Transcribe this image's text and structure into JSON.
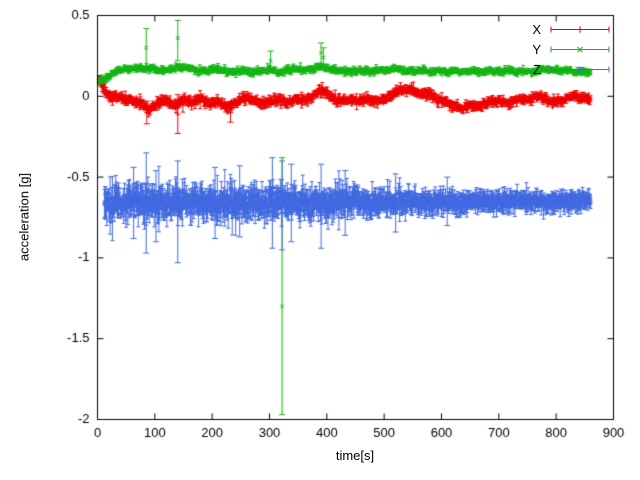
{
  "chart_data": {
    "type": "scatter",
    "title": "",
    "xlabel": "time[s]",
    "ylabel": "acceleration [g]",
    "xlim": [
      0,
      900
    ],
    "ylim": [
      -2,
      0.5
    ],
    "x_ticks": [
      0,
      100,
      200,
      300,
      400,
      500,
      600,
      700,
      800,
      900
    ],
    "x_tick_labels": [
      "0",
      "100",
      "200",
      "300",
      "400",
      "500",
      "600",
      "700",
      "800",
      "900"
    ],
    "y_ticks": [
      0.5,
      0,
      -0.5,
      -1,
      -1.5,
      -2
    ],
    "y_tick_labels": [
      "0.5",
      "0",
      "-0.5",
      "-1",
      "-1.5",
      "-2"
    ],
    "grid": false,
    "axis_color": "#000000",
    "legend": {
      "position": "top-right",
      "entries": [
        "X",
        "Y",
        "Z"
      ]
    },
    "series": [
      {
        "name": "X",
        "color": "#ee0000",
        "marker": "plus",
        "style": "points-with-errorbars",
        "seed": 11,
        "x_start": 2,
        "x_end": 860,
        "step": 0.5,
        "err_every": 3,
        "trend": [
          [
            2,
            0.1
          ],
          [
            8,
            0.08
          ],
          [
            14,
            0.02
          ],
          [
            25,
            0.0
          ],
          [
            40,
            -0.01
          ],
          [
            60,
            -0.02
          ],
          [
            75,
            -0.04
          ],
          [
            90,
            -0.08
          ],
          [
            100,
            -0.06
          ],
          [
            110,
            -0.02
          ],
          [
            120,
            -0.03
          ],
          [
            135,
            -0.06
          ],
          [
            150,
            -0.02
          ],
          [
            165,
            -0.04
          ],
          [
            180,
            -0.01
          ],
          [
            195,
            -0.05
          ],
          [
            210,
            -0.03
          ],
          [
            225,
            -0.07
          ],
          [
            240,
            -0.04
          ],
          [
            255,
            -0.01
          ],
          [
            270,
            -0.02
          ],
          [
            285,
            -0.05
          ],
          [
            300,
            -0.03
          ],
          [
            315,
            -0.02
          ],
          [
            330,
            -0.04
          ],
          [
            345,
            -0.02
          ],
          [
            360,
            -0.02
          ],
          [
            375,
            0.0
          ],
          [
            388,
            0.04
          ],
          [
            398,
            0.03
          ],
          [
            408,
            -0.01
          ],
          [
            420,
            -0.03
          ],
          [
            435,
            -0.02
          ],
          [
            450,
            -0.03
          ],
          [
            465,
            -0.02
          ],
          [
            480,
            -0.03
          ],
          [
            495,
            -0.02
          ],
          [
            505,
            -0.01
          ],
          [
            515,
            0.01
          ],
          [
            525,
            0.03
          ],
          [
            535,
            0.04
          ],
          [
            545,
            0.04
          ],
          [
            555,
            0.03
          ],
          [
            565,
            0.02
          ],
          [
            575,
            0.01
          ],
          [
            590,
            -0.01
          ],
          [
            605,
            -0.03
          ],
          [
            620,
            -0.06
          ],
          [
            635,
            -0.07
          ],
          [
            650,
            -0.06
          ],
          [
            665,
            -0.06
          ],
          [
            680,
            -0.04
          ],
          [
            695,
            -0.03
          ],
          [
            710,
            -0.04
          ],
          [
            725,
            -0.03
          ],
          [
            740,
            -0.02
          ],
          [
            755,
            -0.02
          ],
          [
            768,
            0.01
          ],
          [
            780,
            -0.01
          ],
          [
            792,
            -0.04
          ],
          [
            805,
            -0.03
          ],
          [
            818,
            -0.01
          ],
          [
            832,
            0.0
          ],
          [
            845,
            -0.01
          ],
          [
            860,
            -0.01
          ]
        ],
        "noise_sd": [
          [
            0,
            0.012
          ],
          [
            860,
            0.012
          ]
        ],
        "err_len": [
          [
            0,
            0.02
          ],
          [
            860,
            0.018
          ]
        ],
        "outliers": [
          {
            "x": 86,
            "y": -0.1,
            "lo": -0.17,
            "hi": -0.03
          },
          {
            "x": 140,
            "y": -0.11,
            "lo": -0.23,
            "hi": 0.01
          },
          {
            "x": 232,
            "y": -0.1,
            "lo": -0.16,
            "hi": -0.04
          }
        ]
      },
      {
        "name": "Y",
        "color": "#12b512",
        "marker": "times",
        "style": "points-with-errorbars",
        "seed": 23,
        "x_start": 3,
        "x_end": 860,
        "step": 0.5,
        "err_every": 3,
        "trend": [
          [
            3,
            0.1
          ],
          [
            10,
            0.1
          ],
          [
            18,
            0.12
          ],
          [
            30,
            0.15
          ],
          [
            45,
            0.17
          ],
          [
            60,
            0.17
          ],
          [
            75,
            0.18
          ],
          [
            90,
            0.17
          ],
          [
            105,
            0.16
          ],
          [
            120,
            0.16
          ],
          [
            135,
            0.17
          ],
          [
            150,
            0.18
          ],
          [
            165,
            0.17
          ],
          [
            180,
            0.16
          ],
          [
            195,
            0.16
          ],
          [
            210,
            0.17
          ],
          [
            225,
            0.16
          ],
          [
            240,
            0.15
          ],
          [
            255,
            0.16
          ],
          [
            270,
            0.15
          ],
          [
            285,
            0.16
          ],
          [
            300,
            0.16
          ],
          [
            315,
            0.15
          ],
          [
            330,
            0.16
          ],
          [
            345,
            0.17
          ],
          [
            360,
            0.16
          ],
          [
            375,
            0.17
          ],
          [
            388,
            0.19
          ],
          [
            400,
            0.17
          ],
          [
            415,
            0.16
          ],
          [
            430,
            0.16
          ],
          [
            445,
            0.15
          ],
          [
            460,
            0.16
          ],
          [
            475,
            0.15
          ],
          [
            490,
            0.16
          ],
          [
            505,
            0.16
          ],
          [
            520,
            0.17
          ],
          [
            535,
            0.16
          ],
          [
            550,
            0.15
          ],
          [
            565,
            0.16
          ],
          [
            580,
            0.15
          ],
          [
            595,
            0.16
          ],
          [
            610,
            0.15
          ],
          [
            625,
            0.16
          ],
          [
            640,
            0.15
          ],
          [
            655,
            0.16
          ],
          [
            670,
            0.15
          ],
          [
            685,
            0.16
          ],
          [
            700,
            0.15
          ],
          [
            715,
            0.16
          ],
          [
            730,
            0.15
          ],
          [
            745,
            0.16
          ],
          [
            760,
            0.15
          ],
          [
            775,
            0.17
          ],
          [
            790,
            0.16
          ],
          [
            805,
            0.16
          ],
          [
            820,
            0.16
          ],
          [
            835,
            0.15
          ],
          [
            850,
            0.15
          ],
          [
            860,
            0.15
          ]
        ],
        "noise_sd": [
          [
            0,
            0.009
          ],
          [
            860,
            0.008
          ]
        ],
        "err_len": [
          [
            0,
            0.014
          ],
          [
            860,
            0.012
          ]
        ],
        "outliers": [
          {
            "x": 85,
            "y": 0.3,
            "lo": 0.18,
            "hi": 0.42
          },
          {
            "x": 140,
            "y": 0.36,
            "lo": 0.22,
            "hi": 0.47
          },
          {
            "x": 302,
            "y": 0.22,
            "lo": 0.15,
            "hi": 0.28
          },
          {
            "x": 322,
            "y": -1.3,
            "lo": -1.97,
            "hi": -0.38
          },
          {
            "x": 390,
            "y": 0.27,
            "lo": 0.19,
            "hi": 0.33
          },
          {
            "x": 394,
            "y": 0.24,
            "lo": 0.17,
            "hi": 0.3
          }
        ]
      },
      {
        "name": "Z",
        "color": "#4169e1",
        "marker": "asterisk",
        "style": "points-with-errorbars",
        "seed": 37,
        "x_start": 12,
        "x_end": 860,
        "step": 0.5,
        "err_every": 2,
        "trend": [
          [
            12,
            -0.67
          ],
          [
            30,
            -0.66
          ],
          [
            60,
            -0.66
          ],
          [
            90,
            -0.65
          ],
          [
            120,
            -0.66
          ],
          [
            150,
            -0.66
          ],
          [
            180,
            -0.65
          ],
          [
            210,
            -0.66
          ],
          [
            240,
            -0.65
          ],
          [
            270,
            -0.66
          ],
          [
            300,
            -0.65
          ],
          [
            330,
            -0.66
          ],
          [
            360,
            -0.66
          ],
          [
            390,
            -0.67
          ],
          [
            420,
            -0.66
          ],
          [
            450,
            -0.65
          ],
          [
            480,
            -0.66
          ],
          [
            510,
            -0.66
          ],
          [
            540,
            -0.65
          ],
          [
            570,
            -0.66
          ],
          [
            600,
            -0.65
          ],
          [
            630,
            -0.66
          ],
          [
            660,
            -0.65
          ],
          [
            690,
            -0.65
          ],
          [
            720,
            -0.65
          ],
          [
            750,
            -0.65
          ],
          [
            780,
            -0.65
          ],
          [
            810,
            -0.65
          ],
          [
            840,
            -0.64
          ],
          [
            860,
            -0.64
          ]
        ],
        "noise_sd": [
          [
            0,
            0.03
          ],
          [
            100,
            0.035
          ],
          [
            300,
            0.035
          ],
          [
            450,
            0.03
          ],
          [
            600,
            0.022
          ],
          [
            860,
            0.02
          ]
        ],
        "err_len": [
          [
            0,
            0.075
          ],
          [
            150,
            0.07
          ],
          [
            350,
            0.07
          ],
          [
            500,
            0.055
          ],
          [
            650,
            0.045
          ],
          [
            860,
            0.04
          ]
        ],
        "outliers": [
          {
            "x": 63,
            "y": -0.66,
            "lo": -0.88,
            "hi": -0.44
          },
          {
            "x": 85,
            "y": -0.66,
            "lo": -0.97,
            "hi": -0.35
          },
          {
            "x": 102,
            "y": -0.68,
            "lo": -0.9,
            "hi": -0.46
          },
          {
            "x": 140,
            "y": -0.7,
            "lo": -1.03,
            "hi": -0.4
          },
          {
            "x": 205,
            "y": -0.66,
            "lo": -0.88,
            "hi": -0.44
          },
          {
            "x": 248,
            "y": -0.65,
            "lo": -0.87,
            "hi": -0.43
          },
          {
            "x": 305,
            "y": -0.66,
            "lo": -0.94,
            "hi": -0.38
          },
          {
            "x": 322,
            "y": -0.67,
            "lo": -0.95,
            "hi": -0.4
          },
          {
            "x": 338,
            "y": -0.66,
            "lo": -0.9,
            "hi": -0.42
          },
          {
            "x": 390,
            "y": -0.68,
            "lo": -0.94,
            "hi": -0.42
          },
          {
            "x": 432,
            "y": -0.66,
            "lo": -0.86,
            "hi": -0.46
          },
          {
            "x": 520,
            "y": -0.66,
            "lo": -0.84,
            "hi": -0.48
          },
          {
            "x": 610,
            "y": -0.65,
            "lo": -0.8,
            "hi": -0.5
          }
        ]
      }
    ]
  }
}
